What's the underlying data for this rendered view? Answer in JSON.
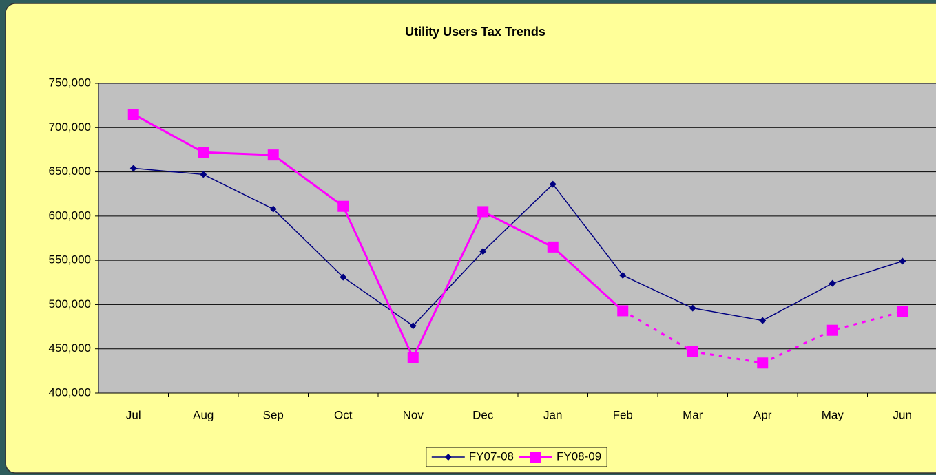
{
  "chart_data": {
    "type": "line",
    "title": "Utility Users Tax Trends",
    "categories": [
      "Jul",
      "Aug",
      "Sep",
      "Oct",
      "Nov",
      "Dec",
      "Jan",
      "Feb",
      "Mar",
      "Apr",
      "May",
      "Jun"
    ],
    "series": [
      {
        "name": "FY07-08",
        "color": "#000080",
        "marker": "diamond",
        "values": [
          654000,
          647000,
          608000,
          531000,
          476000,
          560000,
          636000,
          533000,
          496000,
          482000,
          524000,
          549000
        ]
      },
      {
        "name": "FY08-09",
        "color": "#ff00ff",
        "marker": "square",
        "dashed_from": "Feb",
        "values": [
          715000,
          672000,
          669000,
          611000,
          440000,
          605000,
          565000,
          493000,
          447000,
          434000,
          471000,
          492000
        ]
      }
    ],
    "ylim": [
      400000,
      750000
    ],
    "yticks": [
      {
        "value": 400000,
        "label": "400,000"
      },
      {
        "value": 450000,
        "label": "450,000"
      },
      {
        "value": 500000,
        "label": "500,000"
      },
      {
        "value": 550000,
        "label": "550,000"
      },
      {
        "value": 600000,
        "label": "600,000"
      },
      {
        "value": 650000,
        "label": "650,000"
      },
      {
        "value": 700000,
        "label": "700,000"
      },
      {
        "value": 750000,
        "label": "750,000"
      }
    ],
    "grid": true,
    "legend": "bottom",
    "plot_background": "#c0c0c0",
    "background": "#ffff99"
  }
}
